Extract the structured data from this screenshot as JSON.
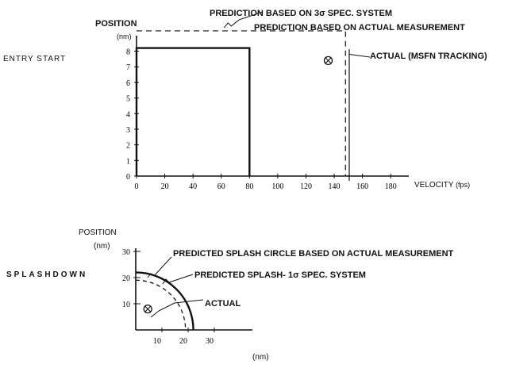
{
  "chart_data": [
    {
      "type": "line",
      "side_label": "ENTRY START",
      "ylabel": "POSITION",
      "yunit": "(nm)",
      "xlabel": "VELOCITY",
      "xunit": "(fps)",
      "xlim": [
        0,
        190
      ],
      "ylim": [
        0,
        9.5
      ],
      "x_ticks": [
        "0",
        "20",
        "40",
        "60",
        "80",
        "100",
        "120",
        "140",
        "160",
        "180"
      ],
      "x_tick_values": [
        0,
        20,
        40,
        60,
        80,
        100,
        120,
        140,
        160,
        180
      ],
      "y_ticks": [
        "0",
        "1",
        "2",
        "3",
        "4",
        "5",
        "6",
        "7",
        "8"
      ],
      "y_tick_values": [
        0,
        1,
        2,
        3,
        4,
        5,
        6,
        7,
        8
      ],
      "annotations": {
        "three_sigma": "PREDICTION BASED ON 3σ SPEC. SYSTEM",
        "actual_meas": "PREDICTION BASED ON ACTUAL MEASUREMENT",
        "actual": "ACTUAL (MSFN TRACKING)"
      },
      "series": [
        {
          "style": "solid",
          "x": [
            0,
            0,
            80,
            80
          ],
          "y": [
            0,
            8.2,
            8.2,
            0
          ]
        },
        {
          "style": "dashed",
          "x": [
            0,
            30,
            80,
            148,
            148
          ],
          "y": [
            9.3,
            9.3,
            9.3,
            9.3,
            0
          ]
        }
      ],
      "actual_point": {
        "x": 147,
        "y": 7.6
      }
    },
    {
      "type": "scatter",
      "side_label": "SPLASHDOWN",
      "ylabel": "POSITION",
      "yunit": "(nm)",
      "xunit": "(nm)",
      "xlim": [
        0,
        40
      ],
      "ylim": [
        0,
        30
      ],
      "x_ticks": [
        "10",
        "20",
        "30"
      ],
      "x_tick_values": [
        10,
        20,
        30
      ],
      "y_ticks": [
        "10",
        "20",
        "30"
      ],
      "y_tick_values": [
        10,
        20,
        30
      ],
      "annotations": {
        "circle_actual": "PREDICTED SPLASH CIRCLE BASED ON ACTUAL MEASUREMENT",
        "circle_spec": "PREDICTED SPLASH- 1σ SPEC. SYSTEM",
        "actual": "ACTUAL"
      },
      "circles": [
        {
          "style": "solid",
          "radius": 22
        },
        {
          "style": "dashed",
          "radius": 19
        }
      ],
      "actual_point": {
        "x": 4,
        "y": 8
      }
    }
  ]
}
